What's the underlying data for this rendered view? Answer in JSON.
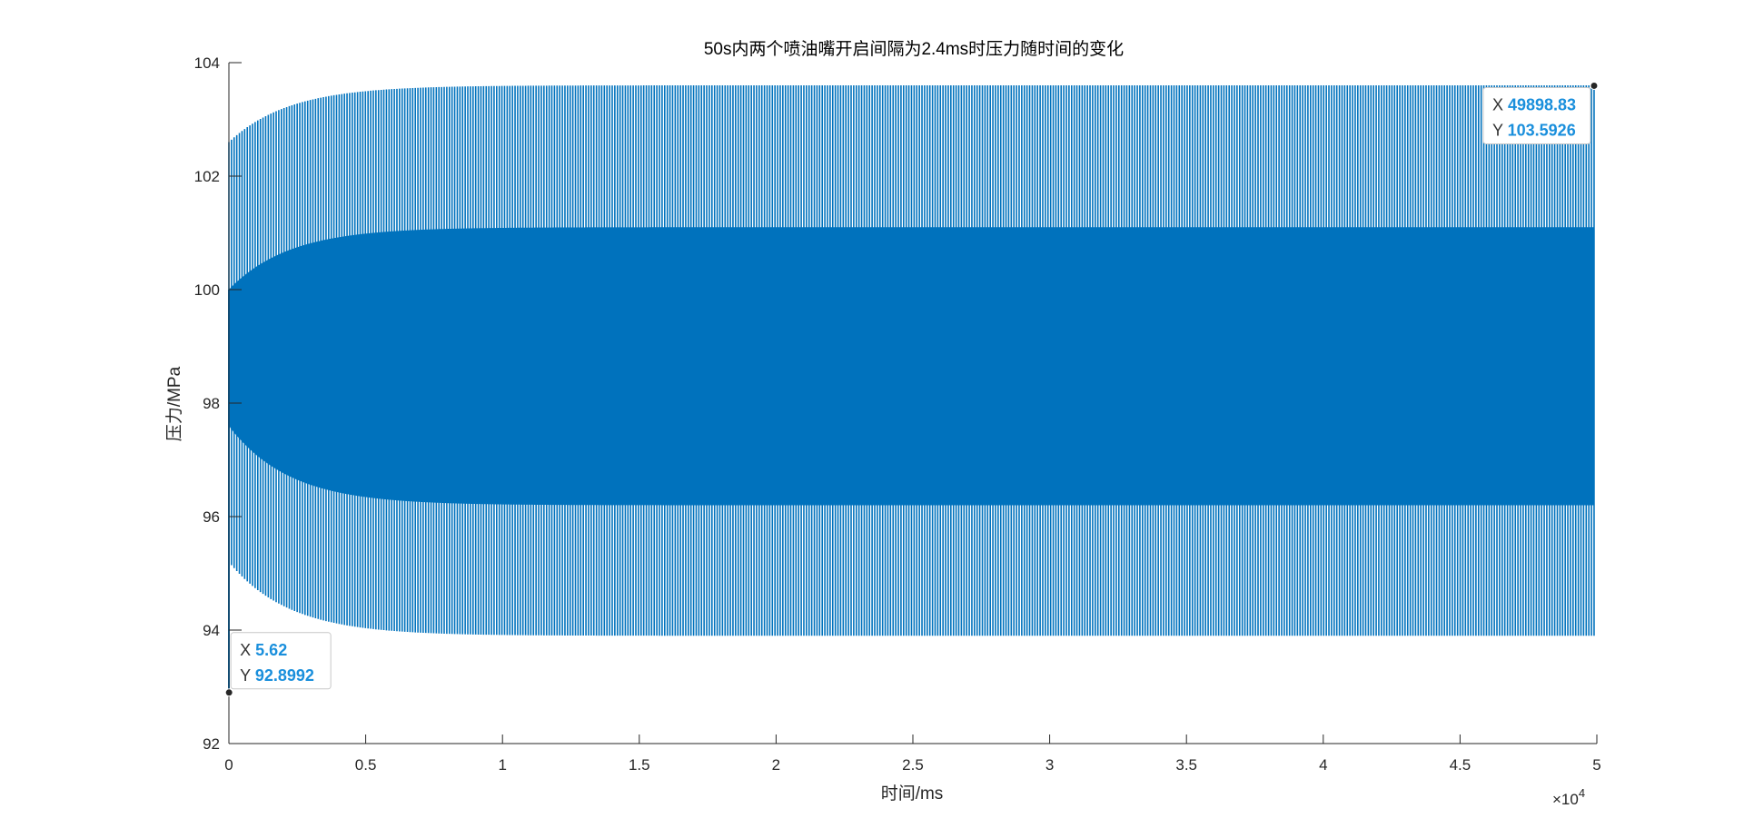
{
  "chart_data": {
    "type": "line",
    "title": "50s内两个喷油嘴开启间隔为2.4ms时压力随时间的变化",
    "xlabel": "时间/ms",
    "ylabel": "压力/MPa",
    "x_exponent_label": "×10",
    "x_exponent_power": "4",
    "xlim": [
      0,
      50000
    ],
    "ylim": [
      92,
      104
    ],
    "x_ticks": [
      0,
      5000,
      10000,
      15000,
      20000,
      25000,
      30000,
      35000,
      40000,
      45000,
      50000
    ],
    "x_tick_labels": [
      "0",
      "0.5",
      "1",
      "1.5",
      "2",
      "2.5",
      "3",
      "3.5",
      "4",
      "4.5",
      "5"
    ],
    "y_ticks": [
      92,
      94,
      96,
      98,
      100,
      102,
      104
    ],
    "y_tick_labels": [
      "92",
      "94",
      "96",
      "98",
      "100",
      "102",
      "104"
    ],
    "grid": false,
    "series_color": "#0072bd",
    "envelope": {
      "outer_max_start": 102.6,
      "outer_max_steady": 103.6,
      "outer_min_start": 95.2,
      "outer_min_steady": 93.9,
      "inner_max_start": 100.0,
      "inner_max_steady": 101.1,
      "inner_min_start": 97.6,
      "inner_min_steady": 96.2,
      "end_x": 49898.83
    },
    "datatips": [
      {
        "x_key": "X",
        "x_value": "5.62",
        "y_key": "Y",
        "y_value": "92.8992",
        "x": 5.62,
        "y": 92.8992
      },
      {
        "x_key": "X",
        "x_value": "49898.83",
        "y_key": "Y",
        "y_value": "103.5926",
        "x": 49898.83,
        "y": 103.5926
      }
    ]
  }
}
